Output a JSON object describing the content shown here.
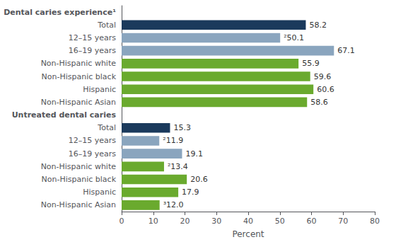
{
  "chart_data": {
    "type": "bar",
    "orientation": "horizontal",
    "categories": [
      "Total",
      "12–15 years",
      "16–19 years",
      "Non-Hispanic white",
      "Non-Hispanic black",
      "Hispanic",
      "Non-Hispanic Asian",
      "Total",
      "12–15 years",
      "16–19 years",
      "Non-Hispanic white",
      "Non-Hispanic black",
      "Hispanic",
      "Non-Hispanic Asian"
    ],
    "values": [
      58.2,
      50.1,
      67.1,
      55.9,
      59.6,
      60.6,
      58.6,
      15.3,
      11.9,
      19.1,
      13.4,
      20.6,
      17.9,
      12.0
    ],
    "value_labels": [
      "58.2",
      "²50.1",
      "67.1",
      "55.9",
      "59.6",
      "60.6",
      "58.6",
      "15.3",
      "²11.9",
      "19.1",
      "²13.4",
      "20.6",
      "17.9",
      "³12.0"
    ],
    "colors": [
      "#1b3a5c",
      "#8aa5be",
      "#8aa5be",
      "#6aaa2e",
      "#6aaa2e",
      "#6aaa2e",
      "#6aaa2e",
      "#1b3a5c",
      "#8aa5be",
      "#8aa5be",
      "#6aaa2e",
      "#6aaa2e",
      "#6aaa2e",
      "#6aaa2e"
    ],
    "xlabel": "Percent",
    "xlim": [
      0,
      80
    ],
    "xticks": [
      0,
      10,
      20,
      30,
      40,
      50,
      60,
      70,
      80
    ],
    "grid": false,
    "data_labels": true,
    "annotations": [
      {
        "text": "Dental caries experience¹",
        "category": 0
      },
      {
        "text": "Untreated dental caries",
        "category": 7
      }
    ]
  }
}
